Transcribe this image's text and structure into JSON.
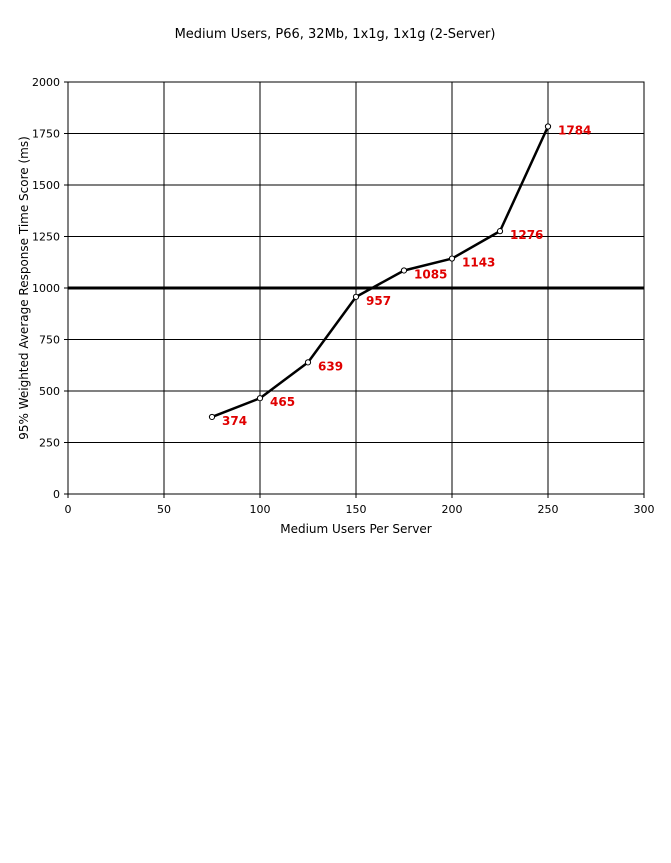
{
  "chart_data": {
    "type": "line",
    "title": "Medium Users, P66, 32Mb, 1x1g, 1x1g (2-Server)",
    "xlabel": "Medium Users Per Server",
    "ylabel": "95% Weighted Average Response Time Score (ms)",
    "xlim": [
      0,
      300
    ],
    "ylim": [
      0,
      2000
    ],
    "xticks": [
      0,
      50,
      100,
      150,
      200,
      250,
      300
    ],
    "yticks": [
      0,
      250,
      500,
      750,
      1000,
      1250,
      1500,
      1750,
      2000
    ],
    "grid": true,
    "reference_line": 1000,
    "series": [
      {
        "x": [
          75,
          100,
          125,
          150,
          175,
          200,
          225,
          250
        ],
        "values": [
          374,
          465,
          639,
          957,
          1085,
          1143,
          1276,
          1784
        ],
        "data_labels": [
          "374",
          "465",
          "639",
          "957",
          "1085",
          "1143",
          "1276",
          "1784"
        ]
      }
    ],
    "colors": {
      "line": "#000000",
      "data_label": "#e00000",
      "grid": "#000000",
      "reference_line": "#000000"
    }
  }
}
